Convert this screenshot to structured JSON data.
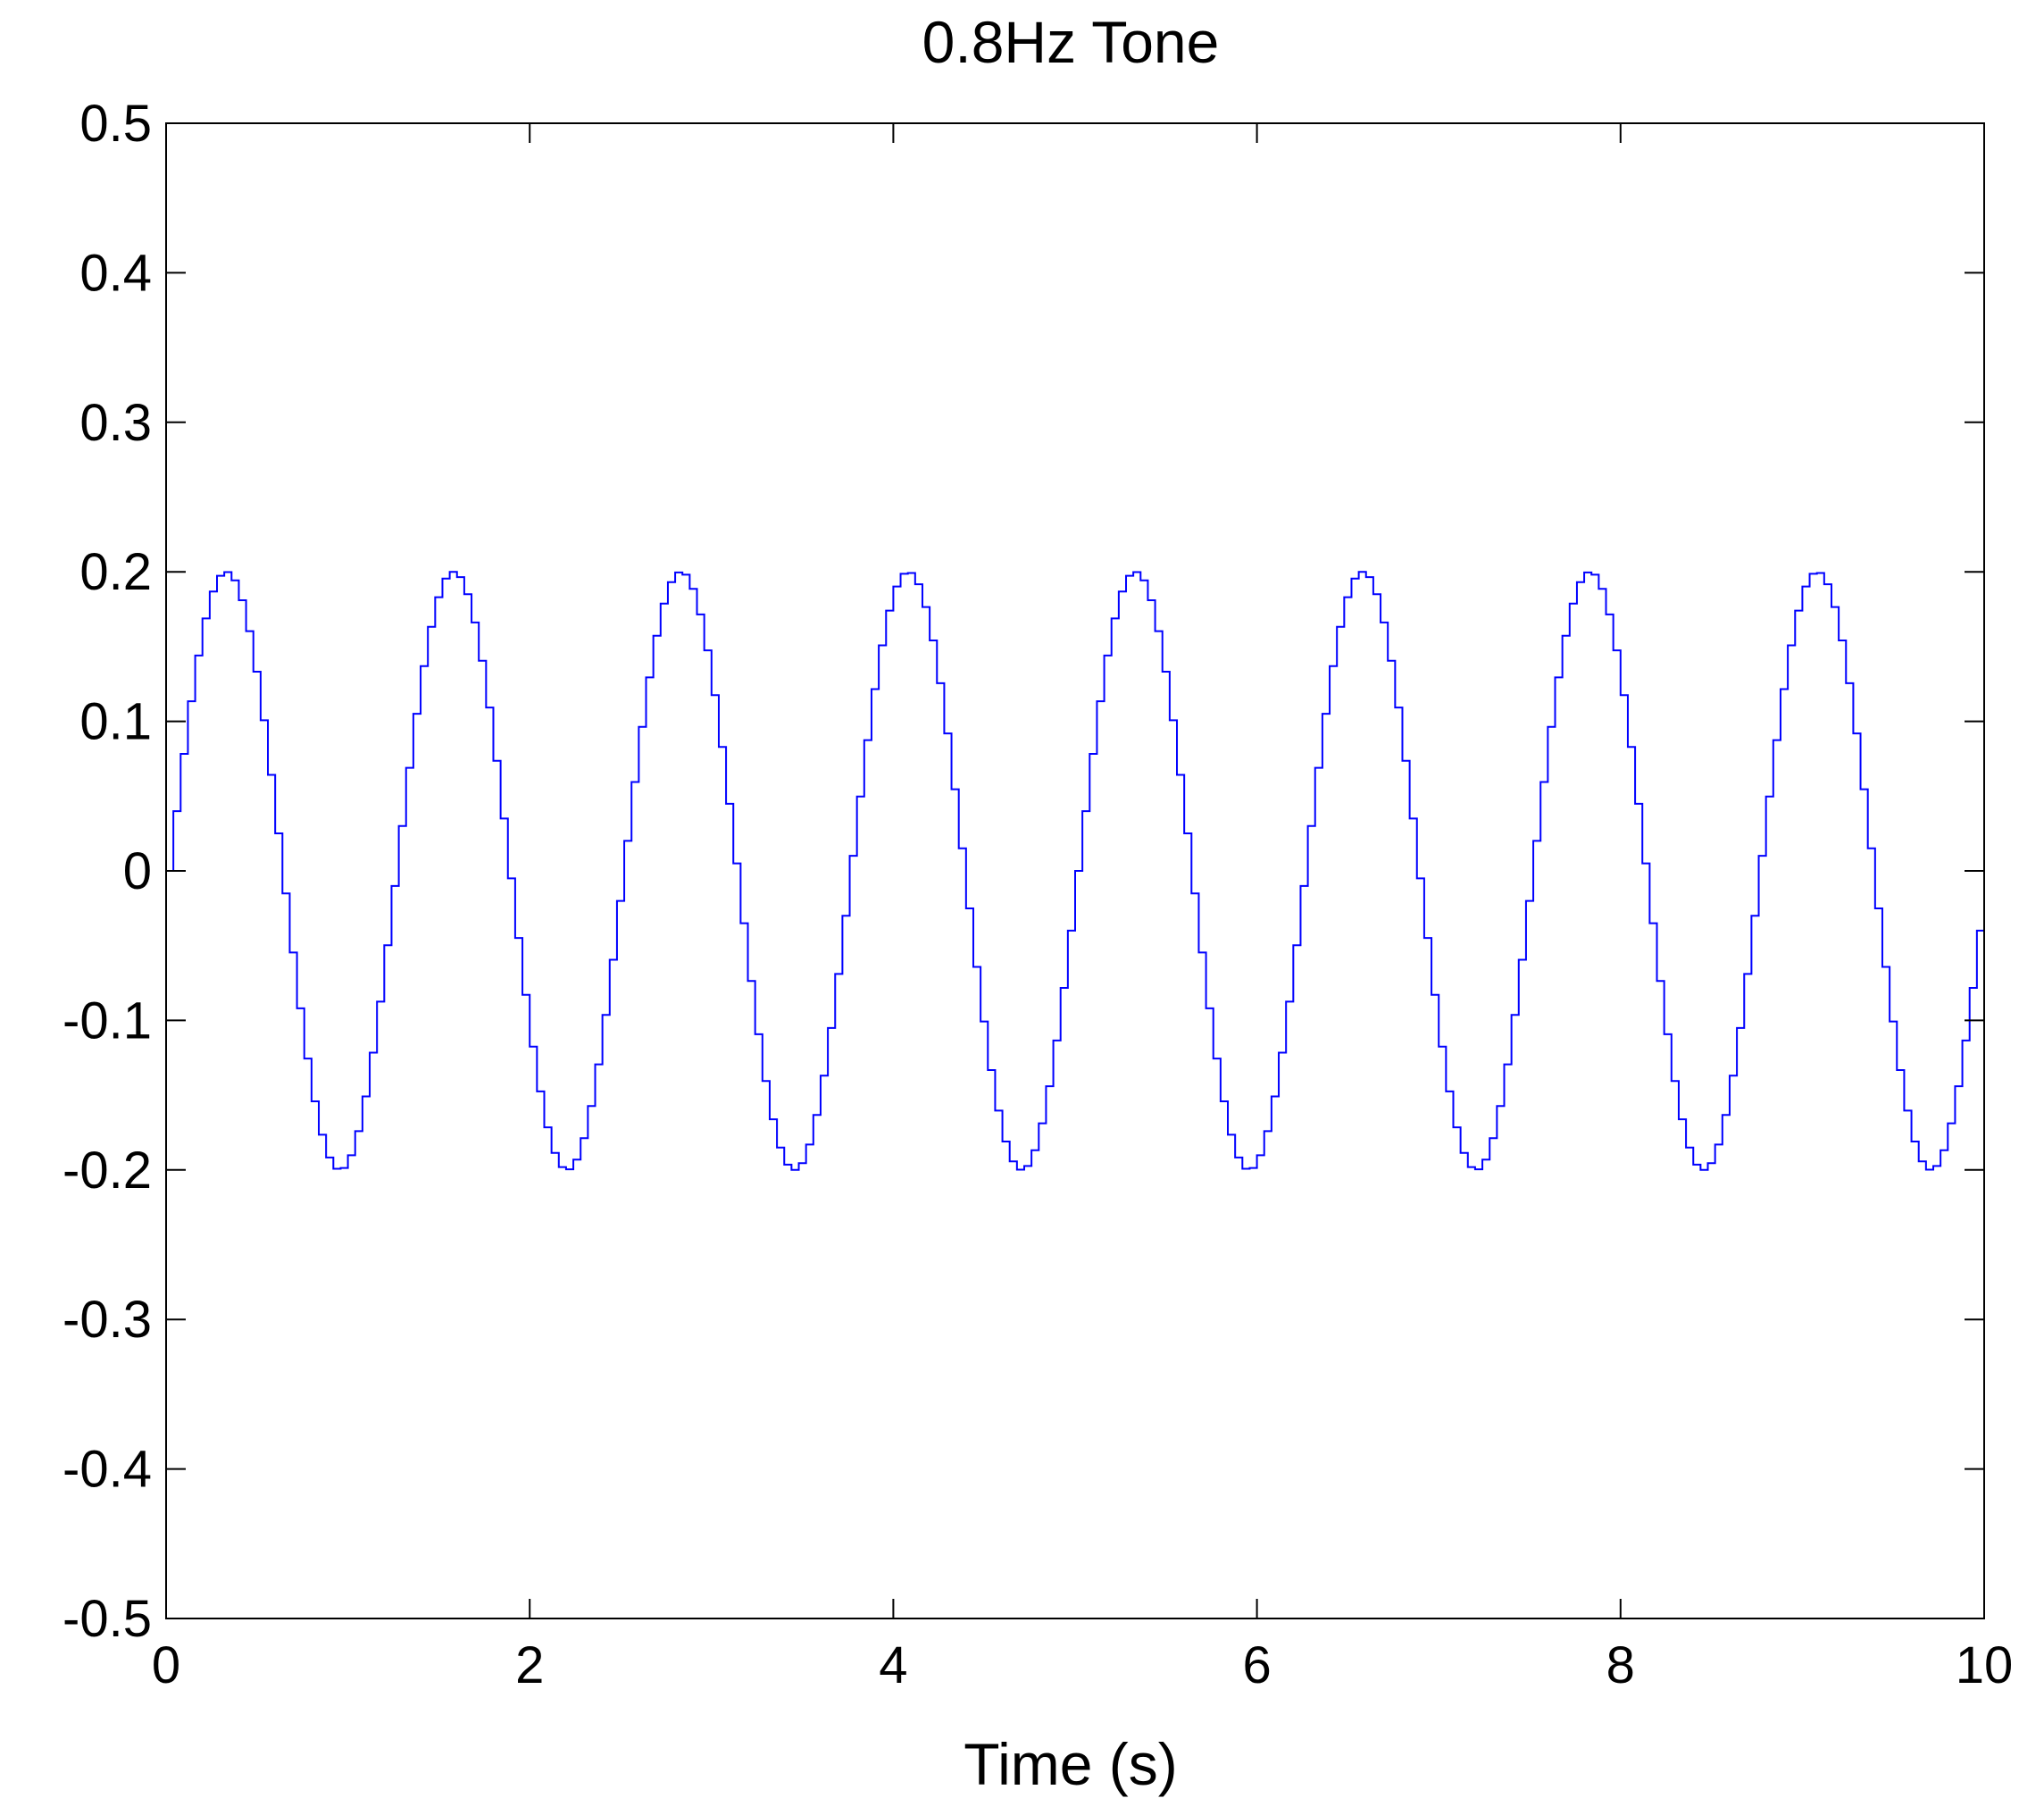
{
  "chart_data": {
    "type": "line",
    "title": "0.8Hz Tone",
    "xlabel": "Time (s)",
    "ylabel": "",
    "xlim": [
      0,
      10
    ],
    "ylim": [
      -0.5,
      0.5
    ],
    "x_ticks": [
      0,
      2,
      4,
      6,
      8,
      10
    ],
    "x_tick_labels": [
      "0",
      "2",
      "4",
      "6",
      "8",
      "10"
    ],
    "y_ticks": [
      0.5,
      0.4,
      0.3,
      0.2,
      0.1,
      0,
      -0.1,
      -0.2,
      -0.3,
      -0.4,
      -0.5
    ],
    "y_tick_labels": [
      "0.5",
      "0.4",
      "0.3",
      "0.2",
      "0.1",
      "0",
      "-0.1",
      "-0.2",
      "-0.3",
      "-0.4",
      "-0.5"
    ],
    "grid": false,
    "series": [
      {
        "color": "#0000ff",
        "waveform": "sine",
        "amplitude": 0.2,
        "frequency_hz": 0.8,
        "sample_interval_s": 0.04,
        "x_start": 0,
        "x_end": 10,
        "step": true
      }
    ]
  }
}
